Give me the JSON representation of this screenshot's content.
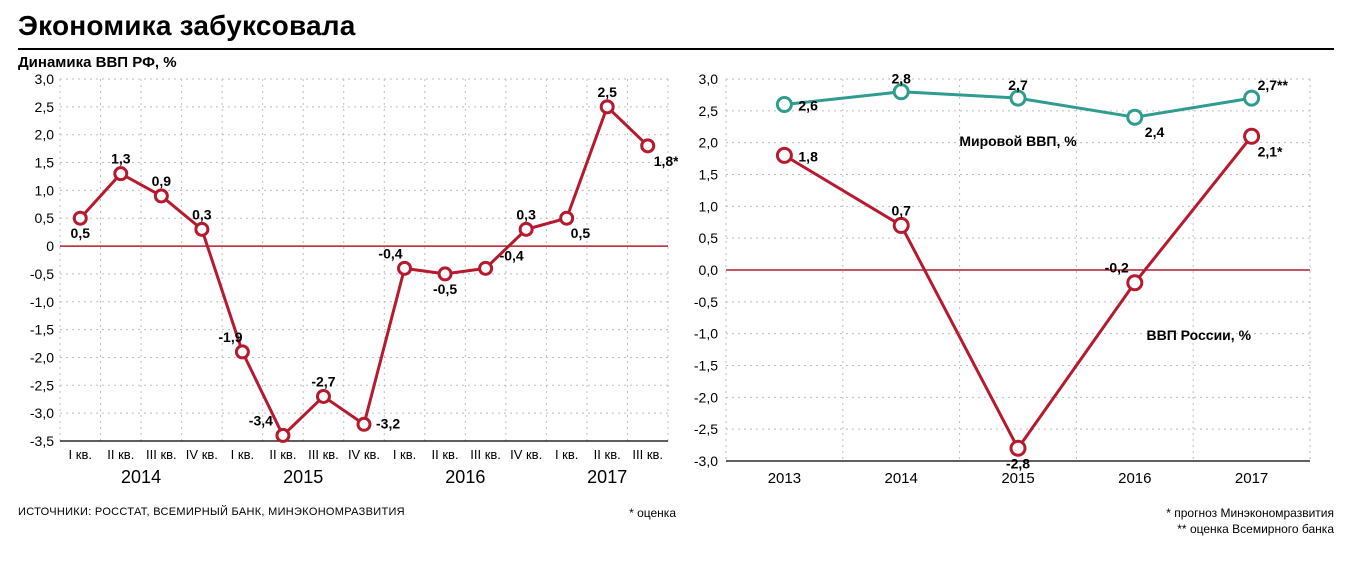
{
  "header": {
    "title": "Экономика забуксовала",
    "subtitle": "Динамика ВВП РФ, %"
  },
  "chart1": {
    "type": "line",
    "background_color": "#ffffff",
    "grid_color": "#bdbdbd",
    "zero_line_color": "#b61a2e",
    "axis_color": "#000000",
    "line_color": "#b61a2e",
    "marker_fill": "#ffffff",
    "marker_stroke": "#b61a2e",
    "line_width": 3,
    "marker_radius": 6,
    "marker_stroke_width": 3,
    "label_fontsize": 14,
    "tick_fontsize": 14,
    "ylim": [
      -3.5,
      3.0
    ],
    "ytick_step": 0.5,
    "categories": [
      "I кв.",
      "II кв.",
      "III кв.",
      "IV кв.",
      "I кв.",
      "II кв.",
      "III кв.",
      "IV кв.",
      "I кв.",
      "II кв.",
      "III кв.",
      "IV кв.",
      "I кв.",
      "II кв.",
      "III кв."
    ],
    "years": [
      {
        "label": "2014",
        "start": 0,
        "end": 3
      },
      {
        "label": "2015",
        "start": 4,
        "end": 7
      },
      {
        "label": "2016",
        "start": 8,
        "end": 11
      },
      {
        "label": "2017",
        "start": 12,
        "end": 14
      }
    ],
    "values": [
      0.5,
      1.3,
      0.9,
      0.3,
      -1.9,
      -3.4,
      -2.7,
      -3.2,
      -0.4,
      -0.5,
      -0.4,
      0.3,
      0.5,
      2.5,
      1.8
    ],
    "value_labels": [
      "0,5",
      "1,3",
      "0,9",
      "0,3",
      "-1,9",
      "-3,4",
      "-2,7",
      "-3,2",
      "-0,4",
      "-0,5",
      "-0,4",
      "0,3",
      "0,5",
      "2,5",
      "1,8*"
    ]
  },
  "chart2": {
    "type": "line",
    "background_color": "#ffffff",
    "grid_color": "#bdbdbd",
    "zero_line_color": "#b61a2e",
    "axis_color": "#000000",
    "line_width": 3,
    "marker_radius": 7,
    "marker_stroke_width": 3,
    "marker_fill": "#ffffff",
    "label_fontsize": 14,
    "tick_fontsize": 14,
    "ylim": [
      -3.0,
      3.0
    ],
    "ytick_step": 0.5,
    "categories": [
      "2013",
      "2014",
      "2015",
      "2016",
      "2017"
    ],
    "series": [
      {
        "name": "Мировой ВВП, %",
        "color": "#2f9c8f",
        "values": [
          2.6,
          2.8,
          2.7,
          2.4,
          2.7
        ],
        "value_labels": [
          "2,6",
          "2,8",
          "2,7",
          "2,4",
          "2,7**"
        ]
      },
      {
        "name": "ВВП России, %",
        "color": "#b61a2e",
        "values": [
          1.8,
          0.7,
          -2.8,
          -0.2,
          2.1
        ],
        "value_labels": [
          "1,8",
          "0,7",
          "-2,8",
          "-0,2",
          "2,1*"
        ]
      }
    ],
    "legend_world_pos": {
      "x_index": 2.0,
      "y": 1.95
    },
    "legend_russia_pos": {
      "x_index": 3.1,
      "y": -1.1
    }
  },
  "footnotes": {
    "sources": "ИСТОЧНИКИ: РОССТАТ, ВСЕМИРНЫЙ БАНК, МИНЭКОНОМРАЗВИТИЯ",
    "left_note": "* оценка",
    "right_line1": "* прогноз Минэкономразвития",
    "right_line2": "** оценка Всемирного банка"
  },
  "layout": {
    "chart1_width": 660,
    "chart1_height": 430,
    "chart2_width": 650,
    "chart2_height": 430
  }
}
